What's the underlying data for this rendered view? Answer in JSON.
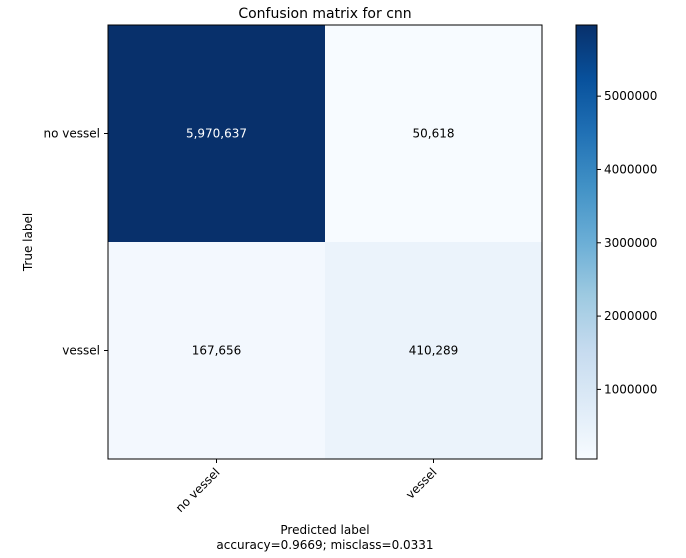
{
  "chart_data": {
    "type": "heatmap",
    "title": "Confusion matrix for cnn",
    "xlabel": "Predicted label",
    "xlabel_sub": "accuracy=0.9669; misclass=0.0331",
    "ylabel": "True label",
    "x_categories": [
      "no vessel",
      "vessel"
    ],
    "y_categories": [
      "no vessel",
      "vessel"
    ],
    "values": [
      [
        5970637,
        50618
      ],
      [
        167656,
        410289
      ]
    ],
    "cell_labels": [
      [
        "5,970,637",
        "50,618"
      ],
      [
        "167,656",
        "410,289"
      ]
    ],
    "colormap": "Blues",
    "colormap_stops": [
      "#f7fbff",
      "#deebf7",
      "#c6dbef",
      "#9ecae1",
      "#6baed6",
      "#4292c6",
      "#2171b5",
      "#08519c",
      "#08306b"
    ],
    "colorbar": {
      "range": [
        50618,
        5970637
      ],
      "ticks": [
        1000000,
        2000000,
        3000000,
        4000000,
        5000000
      ],
      "tick_labels": [
        "1000000",
        "2000000",
        "3000000",
        "4000000",
        "5000000"
      ]
    },
    "grid": false
  }
}
